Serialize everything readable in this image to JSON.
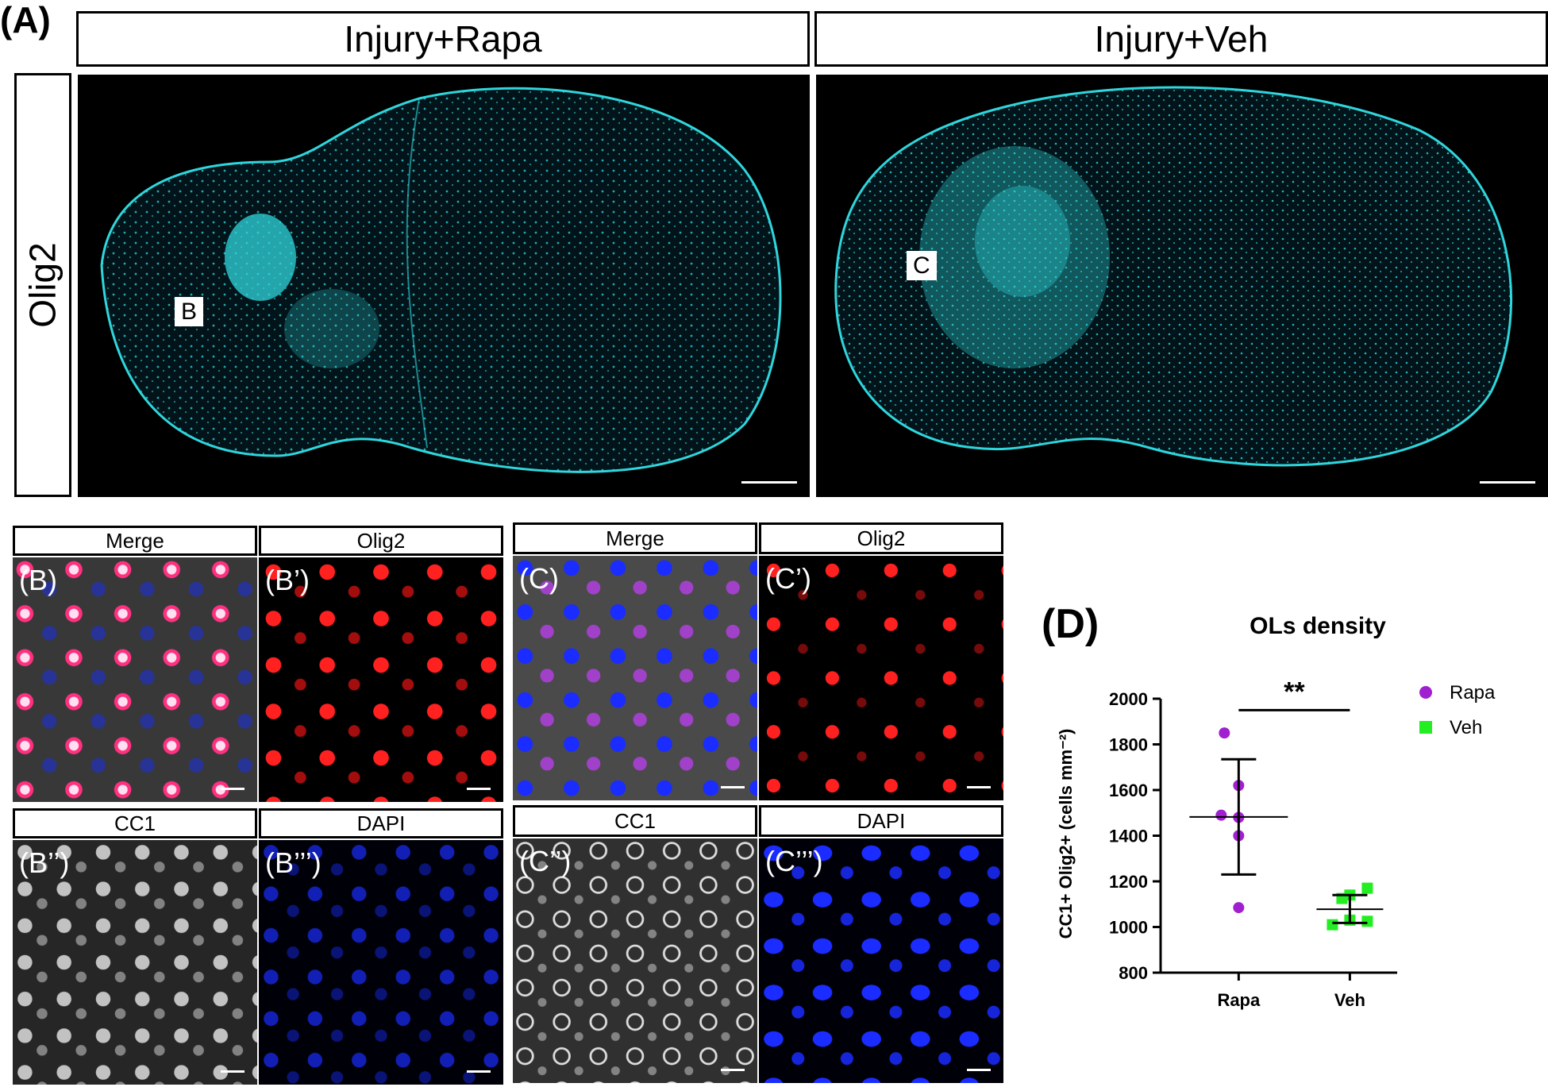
{
  "panel_a": {
    "letter": "(A)",
    "col1_title": "Injury+Rapa",
    "col2_title": "Injury+Veh",
    "row_label": "Olig2",
    "inset_b": "B",
    "inset_c": "C"
  },
  "panel_b": {
    "headers": [
      "Merge",
      "Olig2",
      "CC1",
      "DAPI"
    ],
    "labels": [
      "(B)",
      "(B’)",
      "(B’’)",
      "(B’’’)"
    ]
  },
  "panel_c": {
    "headers": [
      "Merge",
      "Olig2",
      "CC1",
      "DAPI"
    ],
    "labels": [
      "(C)",
      "(C’)",
      "(C’’)",
      "(C’’’)"
    ]
  },
  "panel_d": {
    "letter": "(D)",
    "significance": "**"
  },
  "colors": {
    "olig2_cyan": "#2fd6dc",
    "olig2_red": "#ff2020",
    "cc1_white": "#e8e8e8",
    "dapi_blue": "#1a2cff",
    "arrow_yellow": "#ffff00",
    "rapa_purple": "#a020d0",
    "veh_green": "#22ee22"
  },
  "chart_data": {
    "type": "scatter",
    "title": "OLs density",
    "xlabel": "",
    "ylabel": "CC1+ Olig2+ (cells mm⁻²)",
    "categories": [
      "Rapa",
      "Veh"
    ],
    "ylim": [
      800,
      2000
    ],
    "yticks": [
      "800",
      "1000",
      "1200",
      "1400",
      "1600",
      "1800",
      "2000"
    ],
    "legend_position": "top-right",
    "series": [
      {
        "name": "Rapa",
        "marker": "circle",
        "color": "#a020d0",
        "values": [
          1850,
          1620,
          1490,
          1480,
          1400,
          1085
        ],
        "mean": 1482,
        "sd_low": 1230,
        "sd_high": 1735
      },
      {
        "name": "Veh",
        "marker": "square",
        "color": "#22ee22",
        "values": [
          1170,
          1140,
          1125,
          1030,
          1025,
          1010
        ],
        "mean": 1078,
        "sd_low": 1018,
        "sd_high": 1140
      }
    ]
  }
}
